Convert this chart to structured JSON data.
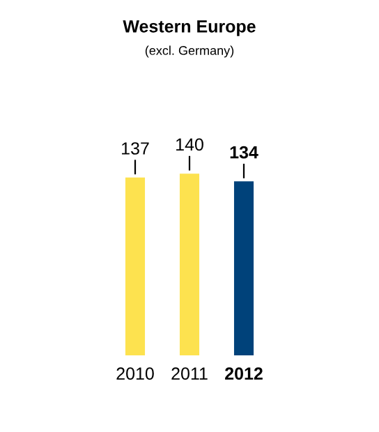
{
  "chart_data": {
    "type": "bar",
    "title": "Western Europe",
    "subtitle": "(excl. Germany)",
    "categories": [
      "2010",
      "2011",
      "2012"
    ],
    "values": [
      137,
      140,
      134
    ],
    "colors": [
      "#fde24f",
      "#fde24f",
      "#00427a"
    ],
    "data_labels": true,
    "grid": false,
    "legend": false
  }
}
